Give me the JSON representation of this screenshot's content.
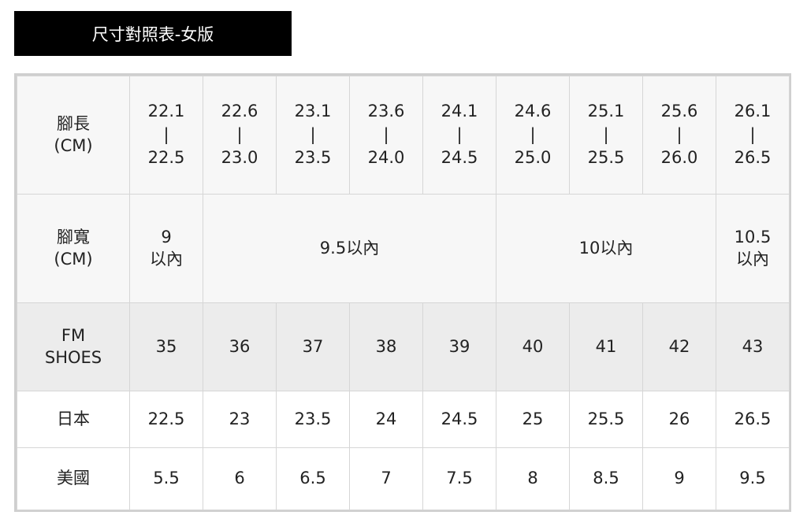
{
  "title": "尺寸對照表-女版",
  "rows": {
    "length": {
      "label1": "腳長",
      "label2": "(CM)",
      "cells": [
        [
          "22.1",
          "22.5"
        ],
        [
          "22.6",
          "23.0"
        ],
        [
          "23.1",
          "23.5"
        ],
        [
          "23.6",
          "24.0"
        ],
        [
          "24.1",
          "24.5"
        ],
        [
          "24.6",
          "25.0"
        ],
        [
          "25.1",
          "25.5"
        ],
        [
          "25.6",
          "26.0"
        ],
        [
          "26.1",
          "26.5"
        ]
      ]
    },
    "width": {
      "label1": "腳寬",
      "label2": "(CM)",
      "cells": [
        {
          "line1": "9",
          "line2": "以內"
        },
        {
          "text": "9.5以內"
        },
        {
          "text": "10以內"
        },
        {
          "line1": "10.5",
          "line2": "以內"
        }
      ]
    },
    "fm": {
      "label1": "FM",
      "label2": "SHOES",
      "cells": [
        "35",
        "36",
        "37",
        "38",
        "39",
        "40",
        "41",
        "42",
        "43"
      ]
    },
    "japan": {
      "label": "日本",
      "cells": [
        "22.5",
        "23",
        "23.5",
        "24",
        "24.5",
        "25",
        "25.5",
        "26",
        "26.5"
      ]
    },
    "usa": {
      "label": "美國",
      "cells": [
        "5.5",
        "6",
        "6.5",
        "7",
        "7.5",
        "8",
        "8.5",
        "9",
        "9.5"
      ]
    }
  },
  "range_separator": "|"
}
